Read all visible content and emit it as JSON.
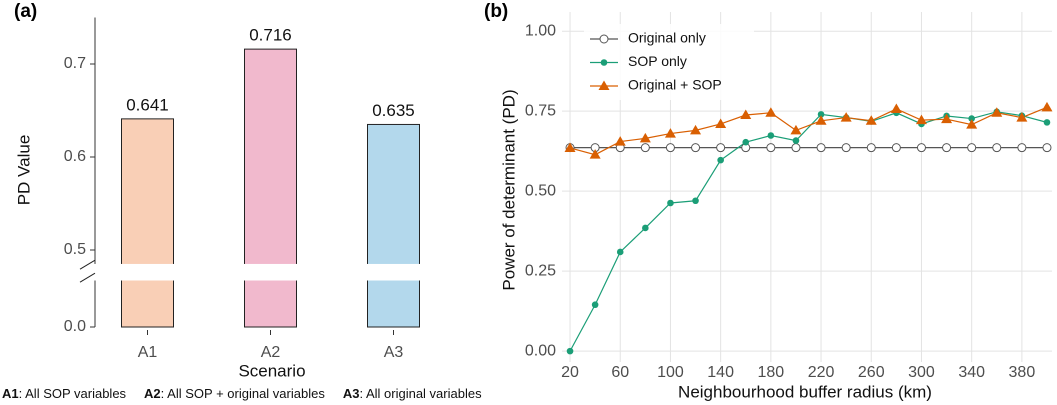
{
  "chart_data": [
    {
      "type": "bar",
      "panel_label": "(a)",
      "xlabel": "Scenario",
      "ylabel": "PD Value",
      "categories": [
        "A1",
        "A2",
        "A3"
      ],
      "values": [
        0.641,
        0.716,
        0.635
      ],
      "colors": [
        "#f9cfb6",
        "#f1b9cd",
        "#b3d8ec"
      ],
      "ylim": [
        0,
        0.75
      ],
      "ybreak": [
        0.05,
        0.485
      ],
      "yticks": [
        {
          "value": 0,
          "label": "0.0"
        },
        0.5,
        0.6,
        0.7
      ],
      "notes": [
        {
          "code": "A1",
          "description": ": All SOP variables"
        },
        {
          "code": "A2",
          "description": ": All SOP + original variables"
        },
        {
          "code": "A3",
          "description": ": All original variables"
        }
      ]
    },
    {
      "type": "line",
      "panel_label": "(b)",
      "xlabel": "Neighbourhood buffer radius (km)",
      "ylabel": "Power of determinant (PD)",
      "x": [
        20,
        40,
        60,
        80,
        100,
        120,
        140,
        160,
        180,
        200,
        220,
        240,
        260,
        280,
        300,
        320,
        340,
        360,
        380,
        400
      ],
      "series": [
        {
          "name": "Original only",
          "color": "#555555",
          "marker": "open-circle",
          "values": [
            0.636,
            0.636,
            0.636,
            0.636,
            0.636,
            0.636,
            0.636,
            0.636,
            0.636,
            0.636,
            0.636,
            0.636,
            0.636,
            0.636,
            0.636,
            0.636,
            0.636,
            0.636,
            0.636,
            0.636
          ]
        },
        {
          "name": "SOP only",
          "color": "#1b9e77",
          "marker": "circle",
          "values": [
            0.0,
            0.145,
            0.31,
            0.385,
            0.463,
            0.47,
            0.597,
            0.653,
            0.674,
            0.658,
            0.74,
            0.73,
            0.718,
            0.745,
            0.71,
            0.735,
            0.727,
            0.748,
            0.736,
            0.715
          ]
        },
        {
          "name": "Original + SOP",
          "color": "#d95f02",
          "marker": "triangle",
          "values": [
            0.635,
            0.614,
            0.655,
            0.665,
            0.68,
            0.69,
            0.71,
            0.738,
            0.745,
            0.69,
            0.72,
            0.73,
            0.72,
            0.757,
            0.722,
            0.725,
            0.708,
            0.745,
            0.73,
            0.762
          ]
        }
      ],
      "xlim": [
        13.6,
        404
      ],
      "ylim": [
        -0.034,
        1.06
      ],
      "xticks": [
        20,
        60,
        100,
        140,
        180,
        220,
        260,
        300,
        340,
        380
      ],
      "yticks": [
        {
          "value": 0,
          "label": "0.00"
        },
        {
          "value": 0.25,
          "label": "0.25"
        },
        {
          "value": 0.5,
          "label": "0.50"
        },
        {
          "value": 0.75,
          "label": "0.75"
        },
        {
          "value": 1,
          "label": "1.00"
        }
      ],
      "grid": true,
      "legend": "top-left"
    }
  ]
}
